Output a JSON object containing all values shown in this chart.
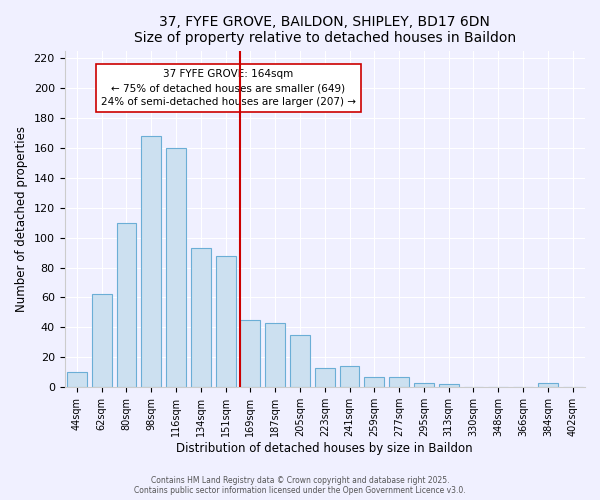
{
  "title": "37, FYFE GROVE, BAILDON, SHIPLEY, BD17 6DN",
  "subtitle": "Size of property relative to detached houses in Baildon",
  "xlabel": "Distribution of detached houses by size in Baildon",
  "ylabel": "Number of detached properties",
  "categories": [
    "44sqm",
    "62sqm",
    "80sqm",
    "98sqm",
    "116sqm",
    "134sqm",
    "151sqm",
    "169sqm",
    "187sqm",
    "205sqm",
    "223sqm",
    "241sqm",
    "259sqm",
    "277sqm",
    "295sqm",
    "313sqm",
    "330sqm",
    "348sqm",
    "366sqm",
    "384sqm",
    "402sqm"
  ],
  "values": [
    10,
    62,
    110,
    168,
    160,
    93,
    88,
    45,
    43,
    35,
    13,
    14,
    7,
    7,
    3,
    2,
    0,
    0,
    0,
    3,
    0
  ],
  "bar_color": "#cce0f0",
  "bar_edge_color": "#6baed6",
  "vline_x_index": 7,
  "vline_color": "#cc0000",
  "annotation_title": "37 FYFE GROVE: 164sqm",
  "annotation_line1": "← 75% of detached houses are smaller (649)",
  "annotation_line2": "24% of semi-detached houses are larger (207) →",
  "annotation_box_color": "#ffffff",
  "annotation_box_edge": "#cc0000",
  "ylim": [
    0,
    225
  ],
  "yticks": [
    0,
    20,
    40,
    60,
    80,
    100,
    120,
    140,
    160,
    180,
    200,
    220
  ],
  "footer1": "Contains HM Land Registry data © Crown copyright and database right 2025.",
  "footer2": "Contains public sector information licensed under the Open Government Licence v3.0.",
  "bg_color": "#f0f0ff",
  "plot_bg_color": "#f0f0ff"
}
